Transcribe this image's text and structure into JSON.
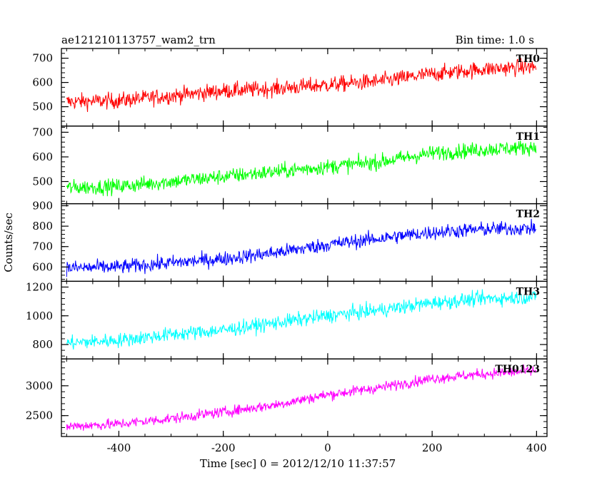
{
  "header": {
    "title": "ae121210113757_wam2_trn",
    "bin_time": "Bin time: 1.0 s"
  },
  "chart_data": {
    "type": "line",
    "title": "ae121210113757_wam2_trn",
    "subtitle": "Bin time: 1.0 s",
    "xlabel": "Time [sec] 0 = 2012/12/10 11:37:57",
    "ylabel": "Counts/sec",
    "xlim": [
      -510,
      420
    ],
    "x_ticks": [
      -400,
      -200,
      0,
      200,
      400
    ],
    "x_range_data": [
      -500,
      399
    ],
    "grid": false,
    "series": [
      {
        "name": "TH0",
        "color": "#ff0000",
        "ylim": [
          420,
          740
        ],
        "y_ticks": [
          500,
          600,
          700
        ],
        "trend_start": 520,
        "trend_end": 660,
        "noise": 30,
        "anchors": {
          "x": [
            -500,
            -400,
            -300,
            -200,
            -100,
            0,
            100,
            200,
            300,
            399
          ],
          "y": [
            520,
            525,
            545,
            565,
            575,
            590,
            605,
            635,
            655,
            665
          ]
        }
      },
      {
        "name": "TH1",
        "color": "#00ff00",
        "ylim": [
          410,
          725
        ],
        "y_ticks": [
          500,
          600,
          700
        ],
        "anchors": {
          "x": [
            -500,
            -400,
            -300,
            -200,
            -100,
            0,
            100,
            200,
            300,
            399
          ],
          "y": [
            475,
            480,
            500,
            520,
            540,
            560,
            580,
            615,
            630,
            640
          ]
        },
        "noise": 28
      },
      {
        "name": "TH2",
        "color": "#0000ff",
        "ylim": [
          530,
          910
        ],
        "y_ticks": [
          600,
          700,
          800,
          900
        ],
        "anchors": {
          "x": [
            -500,
            -400,
            -300,
            -200,
            -100,
            0,
            100,
            200,
            300,
            399
          ],
          "y": [
            595,
            600,
            620,
            640,
            670,
            710,
            740,
            770,
            785,
            790
          ]
        },
        "noise": 32
      },
      {
        "name": "TH3",
        "color": "#00ffff",
        "ylim": [
          700,
          1240
        ],
        "y_ticks": [
          800,
          1000,
          1200
        ],
        "anchors": {
          "x": [
            -500,
            -400,
            -300,
            -200,
            -100,
            0,
            100,
            200,
            300,
            399
          ],
          "y": [
            810,
            830,
            870,
            900,
            950,
            1000,
            1040,
            1090,
            1120,
            1130
          ]
        },
        "noise": 45
      },
      {
        "name": "TH0123",
        "color": "#ff00ff",
        "ylim": [
          2150,
          3450
        ],
        "y_ticks": [
          2500,
          3000
        ],
        "anchors": {
          "x": [
            -500,
            -400,
            -300,
            -200,
            -100,
            0,
            100,
            200,
            300,
            399
          ],
          "y": [
            2320,
            2360,
            2450,
            2560,
            2680,
            2850,
            2970,
            3120,
            3200,
            3250
          ]
        },
        "noise": 80
      }
    ]
  }
}
